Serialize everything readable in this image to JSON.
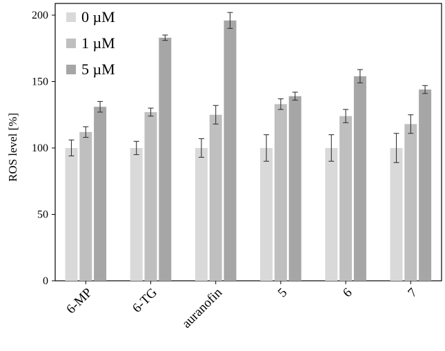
{
  "chart_data": {
    "type": "bar",
    "title": "",
    "xlabel": "",
    "ylabel": "ROS level [%]",
    "ylim": [
      0,
      200
    ],
    "yticks": [
      0,
      50,
      100,
      150,
      200
    ],
    "categories": [
      "6-MP",
      "6-TG",
      "auranofin",
      "5",
      "6",
      "7"
    ],
    "series": [
      {
        "name": "0 µM",
        "color": "#d9d9d9",
        "values": [
          100,
          100,
          100,
          100,
          100,
          100
        ],
        "errors": [
          6,
          5,
          7,
          10,
          10,
          11
        ]
      },
      {
        "name": "1 µM",
        "color": "#bfbfbf",
        "values": [
          112,
          127,
          125,
          133,
          124,
          118
        ],
        "errors": [
          4,
          3,
          7,
          4,
          5,
          7
        ]
      },
      {
        "name": "5 µM",
        "color": "#a6a6a6",
        "values": [
          131,
          183,
          196,
          139,
          154,
          144
        ],
        "errors": [
          4,
          2,
          6,
          3,
          5,
          3
        ]
      }
    ],
    "legend_position": "top-left",
    "grid": false
  }
}
